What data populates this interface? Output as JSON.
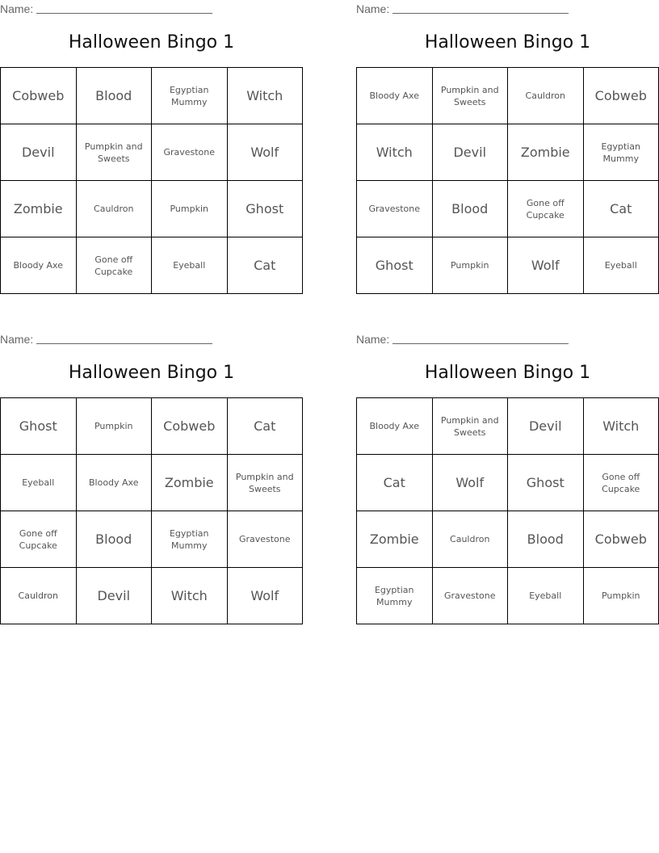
{
  "name_label": "Name:",
  "cards": [
    {
      "title": "Halloween Bingo 1",
      "cells": [
        [
          "Cobweb",
          "Blood",
          "Egyptian Mummy",
          "Witch"
        ],
        [
          "Devil",
          "Pumpkin and Sweets",
          "Gravestone",
          "Wolf"
        ],
        [
          "Zombie",
          "Cauldron",
          "Pumpkin",
          "Ghost"
        ],
        [
          "Bloody Axe",
          "Gone off Cupcake",
          "Eyeball",
          "Cat"
        ]
      ]
    },
    {
      "title": "Halloween Bingo 1",
      "cells": [
        [
          "Bloody Axe",
          "Pumpkin and Sweets",
          "Cauldron",
          "Cobweb"
        ],
        [
          "Witch",
          "Devil",
          "Zombie",
          "Egyptian Mummy"
        ],
        [
          "Gravestone",
          "Blood",
          "Gone off Cupcake",
          "Cat"
        ],
        [
          "Ghost",
          "Pumpkin",
          "Wolf",
          "Eyeball"
        ]
      ]
    },
    {
      "title": "Halloween Bingo 1",
      "cells": [
        [
          "Ghost",
          "Pumpkin",
          "Cobweb",
          "Cat"
        ],
        [
          "Eyeball",
          "Bloody Axe",
          "Zombie",
          "Pumpkin and Sweets"
        ],
        [
          "Gone off Cupcake",
          "Blood",
          "Egyptian Mummy",
          "Gravestone"
        ],
        [
          "Cauldron",
          "Devil",
          "Witch",
          "Wolf"
        ]
      ]
    },
    {
      "title": "Halloween Bingo 1",
      "cells": [
        [
          "Bloody Axe",
          "Pumpkin and Sweets",
          "Devil",
          "Witch"
        ],
        [
          "Cat",
          "Wolf",
          "Ghost",
          "Gone off Cupcake"
        ],
        [
          "Zombie",
          "Cauldron",
          "Blood",
          "Cobweb"
        ],
        [
          "Egyptian Mummy",
          "Gravestone",
          "Eyeball",
          "Pumpkin"
        ]
      ]
    }
  ]
}
